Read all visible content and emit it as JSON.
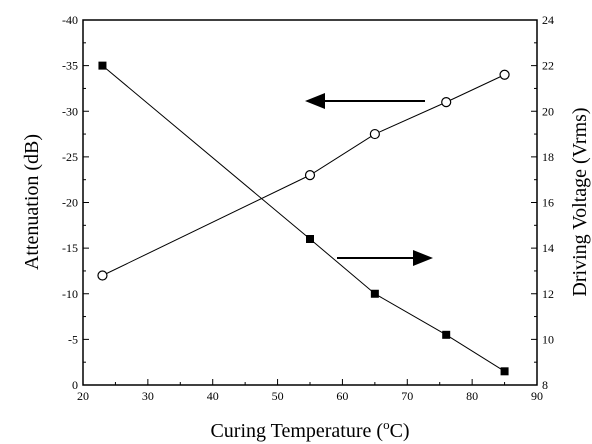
{
  "chart_data": {
    "type": "line",
    "title": "",
    "xlabel": "Curing Temperature (",
    "xlabel_sup": "o",
    "xlabel_suffix": "C)",
    "ylabel_left": "Attenuation (dB)",
    "ylabel_right": "Driving Voltage (Vrms)",
    "xlim": [
      20,
      90
    ],
    "ylim_left": [
      0,
      -40
    ],
    "ylim_right": [
      8,
      24
    ],
    "x_ticks": [
      "20",
      "30",
      "40",
      "50",
      "60",
      "70",
      "80",
      "90"
    ],
    "y_left_ticks": [
      "0",
      "-5",
      "-10",
      "-15",
      "-20",
      "-25",
      "-30",
      "-35",
      "-40"
    ],
    "y_right_ticks": [
      "8",
      "10",
      "12",
      "14",
      "16",
      "18",
      "20",
      "22",
      "24"
    ],
    "grid": false,
    "series": [
      {
        "axis": "left",
        "marker": "open-circle",
        "x": [
          23,
          55,
          65,
          76,
          85
        ],
        "values": [
          -12,
          -23,
          -27.5,
          -31,
          -34
        ]
      },
      {
        "axis": "right",
        "marker": "filled-square",
        "x": [
          23,
          55,
          65,
          76,
          85
        ],
        "values": [
          22,
          14.4,
          12,
          10.2,
          8.6
        ]
      }
    ],
    "annotations": [
      {
        "type": "arrow",
        "direction": "left",
        "points_to": "left axis"
      },
      {
        "type": "arrow",
        "direction": "right",
        "points_to": "right axis"
      }
    ]
  }
}
